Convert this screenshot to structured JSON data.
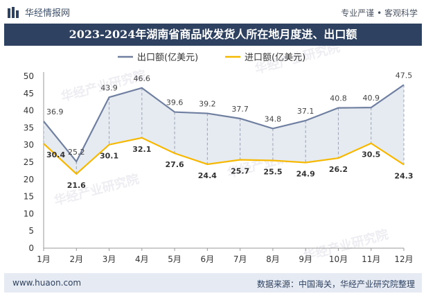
{
  "header": {
    "brand": "华经情报网",
    "slogan": "专业严谨 • 客观科学"
  },
  "watermark": "华经产业研究院",
  "colors": {
    "export": "#6f7fa0",
    "import": "#f6b800",
    "fill": "#e6eaf1",
    "title_bg": "#2e4160"
  },
  "chart_data": {
    "type": "line",
    "title": "2023-2024年湖南省商品收发货人所在地月度进、出口额",
    "categories": [
      "1月",
      "2月",
      "3月",
      "4月",
      "5月",
      "6月",
      "7月",
      "8月",
      "9月",
      "10月",
      "11月",
      "12月"
    ],
    "series": [
      {
        "name": "出口额(亿美元)",
        "values": [
          36.9,
          25.2,
          43.9,
          46.6,
          39.6,
          39.2,
          37.7,
          34.8,
          37.1,
          40.8,
          40.9,
          47.5
        ]
      },
      {
        "name": "进口额(亿美元)",
        "values": [
          30.4,
          21.6,
          30.1,
          32.1,
          27.6,
          24.4,
          25.7,
          25.5,
          24.9,
          26.2,
          30.5,
          24.3
        ]
      }
    ],
    "ylim": [
      0,
      50
    ],
    "yticks": [
      0,
      5,
      10,
      15,
      20,
      25,
      30,
      35,
      40,
      45,
      50
    ],
    "legend": "top"
  },
  "footer": {
    "website": "www.huaon.com",
    "source": "数据来源：中国海关，华经产业研究院整理"
  }
}
